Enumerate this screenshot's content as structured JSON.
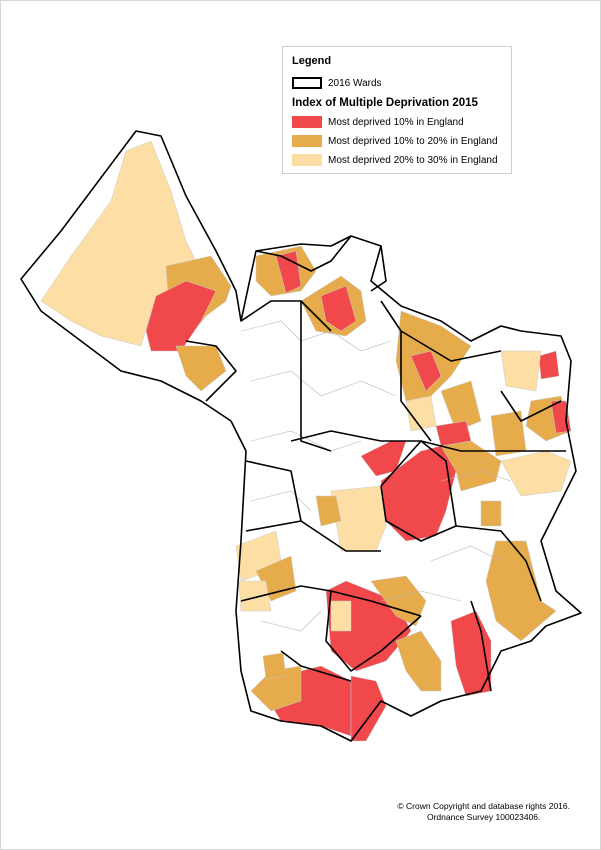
{
  "legend": {
    "title": "Legend",
    "wards": "2016 Wards",
    "heading": "Index of Multiple Deprivation 2015",
    "items": [
      {
        "label": "Most deprived 10% in England",
        "color": "#f0484b"
      },
      {
        "label": "Most deprived 10% to 20% in England",
        "color": "#e6ac4b"
      },
      {
        "label": "Most deprived 20% to 30% in England",
        "color": "#fddfa5"
      }
    ]
  },
  "footer": {
    "lines": [
      "© Crown Copyright and database rights 2016.",
      "Ordnance Survey 100023406."
    ]
  }
}
